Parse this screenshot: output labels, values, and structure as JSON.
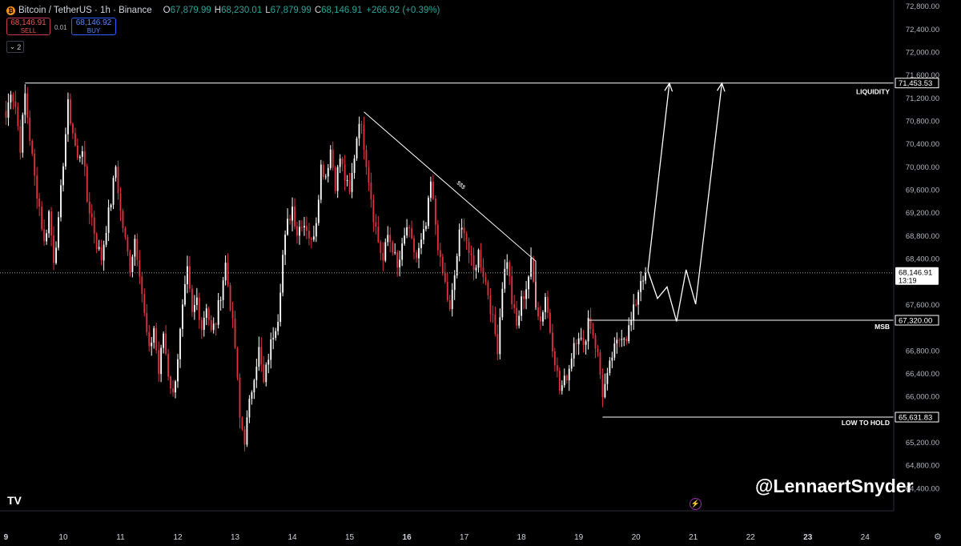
{
  "header": {
    "coin_icon": "bitcoin-icon",
    "symbol": "Bitcoin / TetherUS · 1h · Binance",
    "open_label": "O",
    "open": "67,879.99",
    "high_label": "H",
    "high": "68,230.01",
    "low_label": "L",
    "low": "67,879.99",
    "close_label": "C",
    "close": "68,146.91",
    "change": "+266.92 (+0.39%)"
  },
  "trade": {
    "sell_price": "68,146.91",
    "sell_label": "SELL",
    "buy_price": "68,146.92",
    "buy_label": "BUY",
    "spread": "0.01",
    "lots": "2"
  },
  "watermark": "@LennaertSnyder",
  "colors": {
    "up": "#ffffff",
    "down": "#e0313f",
    "annotation": "#ffffff",
    "background": "#000000"
  },
  "chart_data": {
    "type": "candlestick",
    "yaxis": {
      "min": 64000,
      "max": 72900,
      "ticks": [
        "72,800.00",
        "72,400.00",
        "72,000.00",
        "71,600.00",
        "71,200.00",
        "70,800.00",
        "70,400.00",
        "70,000.00",
        "69,600.00",
        "69,200.00",
        "68,800.00",
        "68,400.00",
        "67,600.00",
        "66,800.00",
        "66,400.00",
        "66,000.00",
        "65,200.00",
        "64,800.00",
        "64,400.00"
      ]
    },
    "xaxis": {
      "labels": [
        {
          "t": 0,
          "text": "9",
          "bold": true
        },
        {
          "t": 24,
          "text": "10"
        },
        {
          "t": 48,
          "text": "11"
        },
        {
          "t": 72,
          "text": "12"
        },
        {
          "t": 96,
          "text": "13"
        },
        {
          "t": 120,
          "text": "14"
        },
        {
          "t": 144,
          "text": "15"
        },
        {
          "t": 168,
          "text": "16",
          "bold": true
        },
        {
          "t": 192,
          "text": "17"
        },
        {
          "t": 216,
          "text": "18"
        },
        {
          "t": 240,
          "text": "19"
        },
        {
          "t": 264,
          "text": "20"
        },
        {
          "t": 288,
          "text": "21"
        },
        {
          "t": 312,
          "text": "22"
        },
        {
          "t": 336,
          "text": "23",
          "bold": true
        },
        {
          "t": 360,
          "text": "24"
        }
      ],
      "range": [
        -2.5,
        372
      ]
    },
    "last_price": {
      "value": 68146.91,
      "label": "68,146.91",
      "countdown": "13:19"
    },
    "anchors": [
      [
        0,
        70850
      ],
      [
        2,
        71350
      ],
      [
        4,
        71050
      ],
      [
        6,
        70350
      ],
      [
        8,
        71250
      ],
      [
        10,
        70500
      ],
      [
        12,
        69800
      ],
      [
        14,
        69300
      ],
      [
        16,
        68650
      ],
      [
        18,
        69200
      ],
      [
        20,
        68400
      ],
      [
        22,
        69000
      ],
      [
        24,
        70100
      ],
      [
        26,
        71050
      ],
      [
        28,
        70600
      ],
      [
        30,
        70100
      ],
      [
        32,
        70350
      ],
      [
        34,
        69400
      ],
      [
        36,
        69100
      ],
      [
        38,
        68650
      ],
      [
        40,
        68400
      ],
      [
        42,
        68950
      ],
      [
        44,
        69400
      ],
      [
        46,
        70000
      ],
      [
        48,
        69200
      ],
      [
        50,
        68700
      ],
      [
        52,
        68250
      ],
      [
        54,
        68750
      ],
      [
        56,
        68200
      ],
      [
        58,
        67400
      ],
      [
        60,
        66750
      ],
      [
        62,
        67200
      ],
      [
        64,
        66400
      ],
      [
        66,
        67100
      ],
      [
        68,
        66400
      ],
      [
        70,
        66000
      ],
      [
        72,
        66700
      ],
      [
        74,
        67500
      ],
      [
        76,
        68150
      ],
      [
        78,
        67400
      ],
      [
        80,
        67700
      ],
      [
        82,
        67200
      ],
      [
        84,
        67600
      ],
      [
        86,
        67100
      ],
      [
        88,
        67300
      ],
      [
        90,
        67800
      ],
      [
        92,
        68300
      ],
      [
        94,
        67600
      ],
      [
        96,
        66850
      ],
      [
        98,
        65600
      ],
      [
        100,
        65250
      ],
      [
        102,
        65850
      ],
      [
        104,
        66400
      ],
      [
        106,
        66800
      ],
      [
        108,
        66200
      ],
      [
        110,
        66700
      ],
      [
        112,
        67100
      ],
      [
        114,
        67400
      ],
      [
        116,
        68450
      ],
      [
        118,
        69000
      ],
      [
        120,
        69300
      ],
      [
        122,
        68850
      ],
      [
        124,
        69050
      ],
      [
        126,
        68950
      ],
      [
        128,
        68650
      ],
      [
        130,
        69100
      ],
      [
        132,
        70000
      ],
      [
        134,
        69850
      ],
      [
        136,
        70300
      ],
      [
        138,
        69700
      ],
      [
        140,
        70150
      ],
      [
        142,
        69800
      ],
      [
        144,
        69500
      ],
      [
        146,
        70200
      ],
      [
        148,
        70850
      ],
      [
        150,
        70400
      ],
      [
        152,
        69800
      ],
      [
        154,
        69150
      ],
      [
        156,
        68700
      ],
      [
        158,
        68350
      ],
      [
        160,
        68800
      ],
      [
        162,
        68600
      ],
      [
        164,
        68200
      ],
      [
        166,
        68550
      ],
      [
        168,
        68950
      ],
      [
        170,
        68650
      ],
      [
        172,
        68400
      ],
      [
        174,
        68650
      ],
      [
        176,
        68950
      ],
      [
        178,
        69700
      ],
      [
        180,
        69000
      ],
      [
        182,
        68300
      ],
      [
        184,
        67950
      ],
      [
        186,
        67450
      ],
      [
        188,
        68100
      ],
      [
        190,
        68800
      ],
      [
        192,
        68950
      ],
      [
        194,
        68500
      ],
      [
        196,
        68150
      ],
      [
        198,
        68500
      ],
      [
        200,
        68150
      ],
      [
        202,
        67800
      ],
      [
        204,
        67300
      ],
      [
        206,
        66850
      ],
      [
        208,
        67950
      ],
      [
        210,
        68400
      ],
      [
        212,
        67650
      ],
      [
        214,
        67200
      ],
      [
        216,
        67650
      ],
      [
        218,
        67900
      ],
      [
        220,
        68300
      ],
      [
        222,
        67650
      ],
      [
        224,
        67300
      ],
      [
        226,
        67750
      ],
      [
        228,
        67150
      ],
      [
        230,
        66650
      ],
      [
        232,
        66100
      ],
      [
        234,
        66250
      ],
      [
        236,
        66500
      ],
      [
        238,
        66950
      ],
      [
        240,
        67100
      ],
      [
        242,
        66800
      ],
      [
        244,
        67350
      ],
      [
        246,
        67100
      ],
      [
        248,
        66700
      ],
      [
        250,
        66050
      ],
      [
        252,
        66300
      ],
      [
        254,
        66700
      ],
      [
        256,
        66900
      ],
      [
        258,
        67100
      ],
      [
        260,
        67050
      ],
      [
        262,
        67300
      ],
      [
        264,
        67650
      ],
      [
        266,
        68050
      ],
      [
        268,
        68147
      ]
    ],
    "levels": [
      {
        "name": "LIQUIDITY",
        "value": 71453.53,
        "label": "71,453.53",
        "from_t": 8
      },
      {
        "name": "MSB",
        "value": 67320.0,
        "label": "67,320.00",
        "from_t": 244
      },
      {
        "name": "LOW TO HOLD",
        "value": 65631.83,
        "label": "65,631.83",
        "from_t": 250
      }
    ],
    "trendline": {
      "points": [
        [
          150,
          70950
        ],
        [
          222,
          68350
        ],
        [
          222,
          67500
        ]
      ],
      "label": "$$$"
    },
    "projection": [
      [
        269,
        68180
      ],
      [
        273,
        67700
      ],
      [
        277,
        67900
      ],
      [
        281,
        67300
      ],
      [
        285,
        68200
      ],
      [
        289,
        67600
      ],
      [
        300,
        71450
      ]
    ],
    "projection_arrow": [
      [
        269,
        68180
      ],
      [
        278,
        71450
      ]
    ]
  }
}
